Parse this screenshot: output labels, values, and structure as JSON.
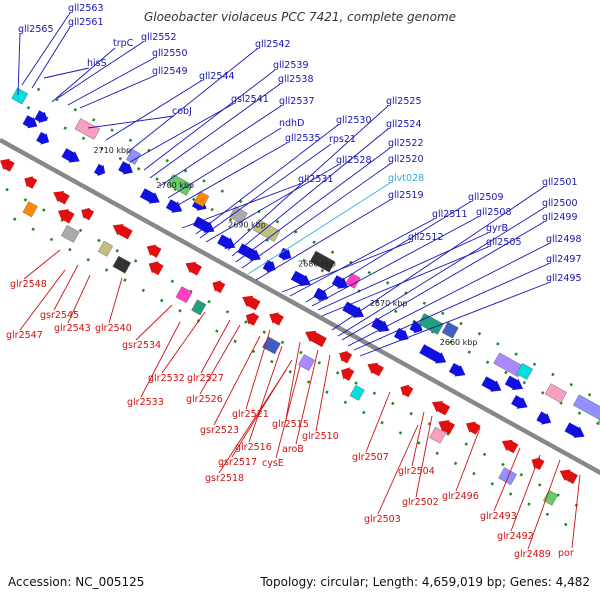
{
  "title": "Gloeobacter violaceus PCC 7421, complete genome",
  "accession_text": "Accession: NC_005125",
  "stats_text": "Topology: circular; Length: 4,659,019 bp; Genes: 4,482",
  "colors": {
    "backbone": "#888888",
    "forward_gene": "#1010e0",
    "reverse_gene": "#e01010",
    "forward_label": "#1515b5",
    "reverse_label": "#cc1111",
    "rna_label": "#33aadd",
    "marker": "#1e8a1e"
  },
  "scale_labels": [
    "2710 kbp",
    "2700 kbp",
    "2690 kbp",
    "2680 kbp",
    "2670 kbp",
    "2660 kbp"
  ],
  "forward_genes": [
    "gll2565",
    "gll2563",
    "gll2561",
    "hisS",
    "trpC",
    "gll2552",
    "gll2550",
    "gll2549",
    "cobJ",
    "gll2544",
    "gll2542",
    "gsl2541",
    "gll2539",
    "gll2538",
    "gll2537",
    "ndhD",
    "gll2535",
    "gll2531",
    "gll2530",
    "rps21",
    "gll2528",
    "gll2525",
    "gll2524",
    "gll2522",
    "gll2520",
    "glvt028",
    "gll2519",
    "gll2512",
    "gll2511",
    "gll2509",
    "gll2508",
    "gyrB",
    "gll2505",
    "gll2501",
    "gll2500",
    "gll2499",
    "gll2498",
    "gll2497",
    "gll2495"
  ],
  "reverse_genes": [
    "glr2548",
    "gsr2545",
    "glr2547",
    "glr2543",
    "glr2540",
    "gsr2534",
    "glr2532",
    "glr2527",
    "glr2533",
    "glr2526",
    "glr2521",
    "gsr2523",
    "glr2515",
    "glr2516",
    "aroB",
    "glr2510",
    "gsr2517",
    "cysE",
    "gsr2518",
    "glr2507",
    "glr2504",
    "glr2502",
    "glr2496",
    "glr2503",
    "glr2493",
    "glr2492",
    "glr2489",
    "por"
  ],
  "rna_genes": [
    "glvt028"
  ]
}
